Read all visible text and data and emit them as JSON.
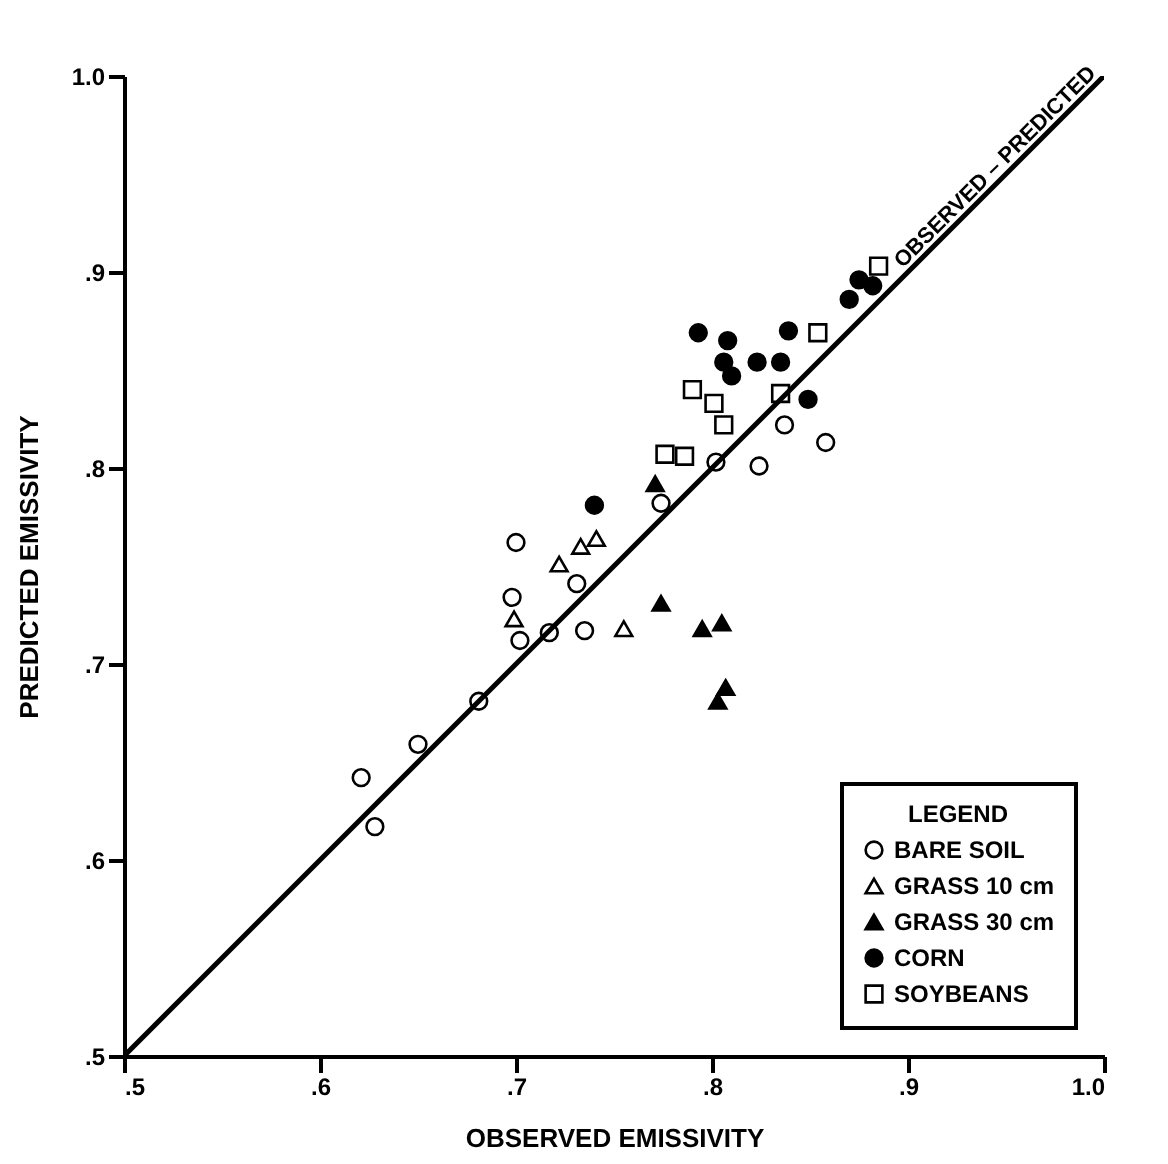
{
  "chart_data": {
    "type": "scatter",
    "xlabel": "OBSERVED EMISSIVITY",
    "ylabel": "PREDICTED EMISSIVITY",
    "legend_title": "LEGEND",
    "legend": "bottom right",
    "grid": false,
    "xlim": [
      0.5,
      1.0
    ],
    "ylim": [
      0.5,
      1.0
    ],
    "xticks": [
      {
        "value": 0.5,
        "label": ".5"
      },
      {
        "value": 0.6,
        "label": ".6"
      },
      {
        "value": 0.7,
        "label": ".7"
      },
      {
        "value": 0.8,
        "label": ".8"
      },
      {
        "value": 0.9,
        "label": ".9"
      },
      {
        "value": 1.0,
        "label": "1.0"
      }
    ],
    "yticks": [
      {
        "value": 0.5,
        "label": ".5"
      },
      {
        "value": 0.6,
        "label": ".6"
      },
      {
        "value": 0.7,
        "label": ".7"
      },
      {
        "value": 0.8,
        "label": ".8"
      },
      {
        "value": 0.9,
        "label": ".9"
      },
      {
        "value": 1.0,
        "label": "1.0"
      }
    ],
    "series": [
      {
        "name": "BARE SOIL",
        "color": "#ffffff",
        "marker": "circle",
        "x": [
          0.621,
          0.628,
          0.65,
          0.681,
          0.698,
          0.7,
          0.702,
          0.717,
          0.731,
          0.735,
          0.774,
          0.802,
          0.824,
          0.837,
          0.858
        ],
        "values": [
          0.642,
          0.617,
          0.659,
          0.681,
          0.734,
          0.762,
          0.712,
          0.716,
          0.741,
          0.717,
          0.782,
          0.803,
          0.801,
          0.822,
          0.813
        ]
      },
      {
        "name": "GRASS 10 cm",
        "color": "#ffffff",
        "marker": "triangle",
        "x": [
          0.699,
          0.722,
          0.733,
          0.741,
          0.755
        ],
        "values": [
          0.723,
          0.751,
          0.76,
          0.764,
          0.718
        ]
      },
      {
        "name": "GRASS 30 cm",
        "color": "#000000",
        "marker": "triangle",
        "x": [
          0.771,
          0.774,
          0.795,
          0.805,
          0.807,
          0.803
        ],
        "values": [
          0.792,
          0.731,
          0.718,
          0.721,
          0.688,
          0.681
        ]
      },
      {
        "name": "CORN",
        "color": "#000000",
        "marker": "circle",
        "x": [
          0.74,
          0.793,
          0.808,
          0.806,
          0.81,
          0.823,
          0.835,
          0.839,
          0.849,
          0.87,
          0.875,
          0.882
        ],
        "values": [
          0.781,
          0.869,
          0.865,
          0.854,
          0.847,
          0.854,
          0.854,
          0.87,
          0.835,
          0.886,
          0.896,
          0.893
        ]
      },
      {
        "name": "SOYBEANS",
        "color": "#ffffff",
        "marker": "square",
        "x": [
          0.776,
          0.786,
          0.79,
          0.801,
          0.806,
          0.835,
          0.854,
          0.885
        ],
        "values": [
          0.807,
          0.806,
          0.84,
          0.833,
          0.822,
          0.838,
          0.869,
          0.903
        ]
      },
      {
        "name": "OBSERVED – PREDICTED",
        "type": "line",
        "color": "#000000",
        "x": [
          0.5,
          1.0
        ],
        "values": [
          0.5,
          1.0
        ]
      }
    ]
  }
}
